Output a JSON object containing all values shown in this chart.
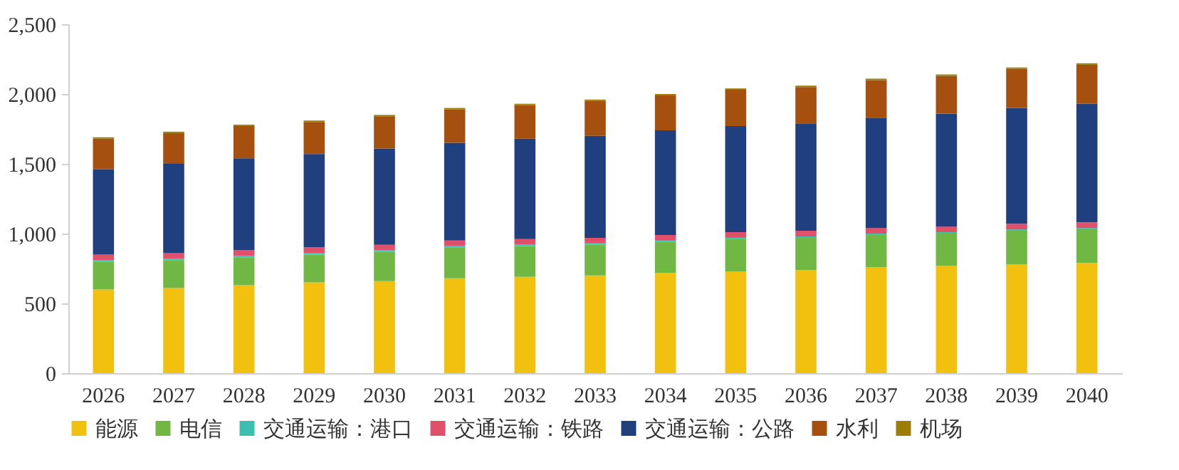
{
  "chart_data": {
    "type": "bar",
    "stacked": true,
    "categories": [
      "2026",
      "2027",
      "2028",
      "2029",
      "2030",
      "2031",
      "2032",
      "2033",
      "2034",
      "2035",
      "2036",
      "2037",
      "2038",
      "2039",
      "2040"
    ],
    "series": [
      {
        "name": "能源",
        "color": "#f2c00e",
        "values": [
          600,
          610,
          630,
          650,
          660,
          680,
          690,
          700,
          720,
          730,
          740,
          760,
          770,
          780,
          790
        ]
      },
      {
        "name": "电信",
        "color": "#70b843",
        "values": [
          200,
          200,
          200,
          200,
          210,
          220,
          220,
          220,
          220,
          230,
          230,
          230,
          230,
          240,
          240
        ]
      },
      {
        "name": "交通运输：港口",
        "color": "#3cbfae",
        "values": [
          10,
          10,
          10,
          10,
          10,
          10,
          10,
          10,
          10,
          10,
          10,
          10,
          10,
          10,
          10
        ]
      },
      {
        "name": "交通运输：铁路",
        "color": "#e0506b",
        "values": [
          40,
          40,
          40,
          40,
          40,
          40,
          40,
          40,
          40,
          40,
          40,
          40,
          40,
          40,
          40
        ]
      },
      {
        "name": "交通运输：公路",
        "color": "#1f3f7f",
        "values": [
          610,
          640,
          660,
          670,
          690,
          700,
          720,
          730,
          750,
          760,
          770,
          790,
          810,
          830,
          850
        ]
      },
      {
        "name": "水利",
        "color": "#a5500f",
        "values": [
          220,
          220,
          230,
          230,
          230,
          240,
          240,
          250,
          250,
          260,
          260,
          270,
          270,
          280,
          280
        ]
      },
      {
        "name": "机场",
        "color": "#9c7d0a",
        "values": [
          10,
          10,
          10,
          10,
          10,
          10,
          10,
          10,
          10,
          10,
          10,
          10,
          10,
          10,
          10
        ]
      }
    ],
    "ylim": [
      0,
      2500
    ],
    "yticks": [
      0,
      500,
      {
        "value": 1000,
        "label": "1,000"
      },
      {
        "value": 1500,
        "label": "1,500"
      },
      {
        "value": 2000,
        "label": "2,000"
      },
      {
        "value": 2500,
        "label": "2,500"
      }
    ],
    "grid": false,
    "legend": "bottom"
  }
}
